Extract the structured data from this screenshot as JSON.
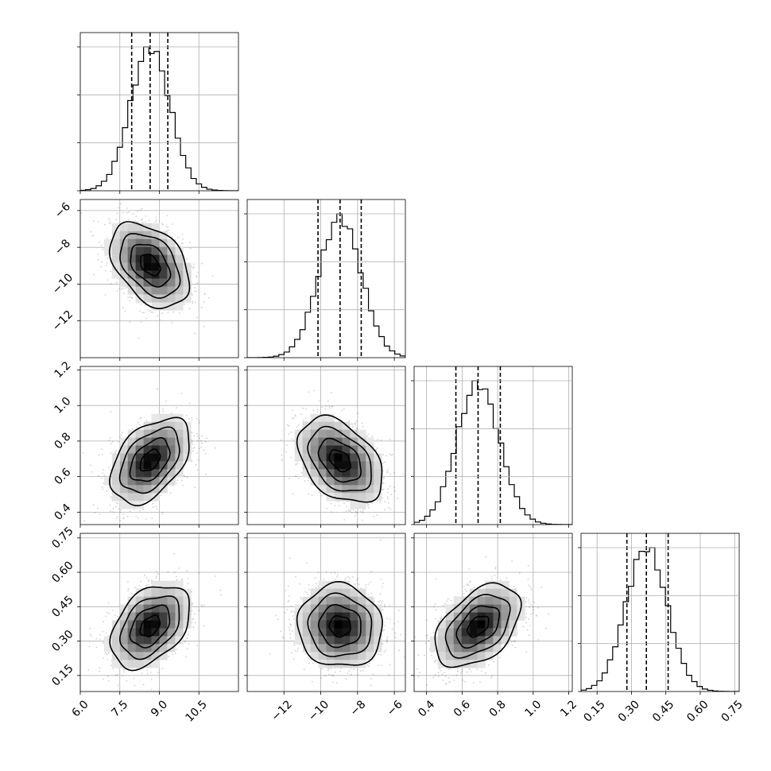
{
  "chart_data": {
    "type": "corner",
    "grid": true,
    "parameters": [
      {
        "ticks": [
          6.0,
          7.5,
          9.0,
          10.5
        ],
        "tick_labels": [
          "6.0",
          "7.5",
          "9.0",
          "10.5"
        ],
        "range": [
          6.0,
          12.0
        ],
        "mean": 8.65,
        "sd": 0.75,
        "quantiles": [
          7.95,
          8.65,
          9.32
        ]
      },
      {
        "ticks": [
          -12,
          -10,
          -8,
          -6
        ],
        "tick_labels": [
          "−12",
          "−10",
          "−8",
          "−6"
        ],
        "range": [
          -14.0,
          -5.4
        ],
        "mean": -8.95,
        "sd": 1.15,
        "quantiles": [
          -10.15,
          -8.95,
          -7.8
        ]
      },
      {
        "ticks": [
          0.4,
          0.6,
          0.8,
          1.0,
          1.2
        ],
        "tick_labels": [
          "0.4",
          "0.6",
          "0.8",
          "1.0",
          "1.2"
        ],
        "range": [
          0.33,
          1.22
        ],
        "mean": 0.69,
        "sd": 0.12,
        "quantiles": [
          0.565,
          0.69,
          0.815
        ]
      },
      {
        "ticks": [
          0.15,
          0.3,
          0.45,
          0.6,
          0.75
        ],
        "tick_labels": [
          "0.15",
          "0.30",
          "0.45",
          "0.60",
          "0.75"
        ],
        "range": [
          0.08,
          0.77
        ],
        "mean": 0.365,
        "sd": 0.09,
        "quantiles": [
          0.28,
          0.365,
          0.46
        ]
      }
    ],
    "correlations": {
      "1_0": -0.4,
      "2_0": 0.45,
      "2_1": -0.4,
      "3_0": 0.4,
      "3_1": -0.05,
      "3_2": 0.45
    },
    "histogram_bins": 30,
    "contour_levels": [
      0.118,
      0.393,
      0.675,
      0.865
    ]
  }
}
